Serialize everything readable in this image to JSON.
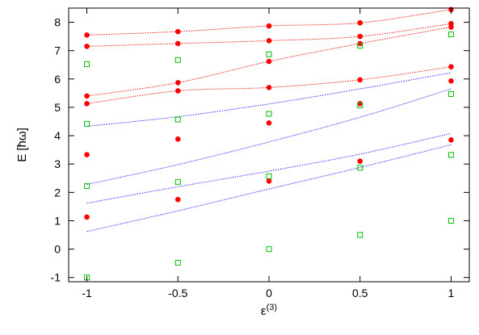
{
  "chart_data": {
    "type": "scatter",
    "title": "",
    "xlabel": "ε",
    "xlabel_superscript": "(3)",
    "ylabel": "E [ħω]",
    "xlim": [
      -1.1,
      1.1
    ],
    "ylim": [
      -1.15,
      8.5
    ],
    "xticks": [
      -1,
      -0.5,
      0,
      0.5,
      1
    ],
    "xtick_labels": [
      "-1",
      "-0.5",
      "0",
      "0.5",
      "1"
    ],
    "yticks": [
      -1,
      0,
      1,
      2,
      3,
      4,
      5,
      6,
      7,
      8
    ],
    "ytick_labels": [
      "-1",
      "0",
      "1",
      "2",
      "3",
      "4",
      "5",
      "6",
      "7",
      "8"
    ],
    "grid": false,
    "legend": "none",
    "colors": {
      "red_points": "#ff0000",
      "green_squares": "#00c000",
      "red_lines": "#e8201a",
      "blue_lines": "#3030ff"
    },
    "series": [
      {
        "marker": "filled-circle",
        "color": "red_points",
        "points": [
          [
            -1,
            7.55
          ],
          [
            -1,
            7.15
          ],
          [
            -1,
            5.4
          ],
          [
            -1,
            5.13
          ],
          [
            -1,
            3.33
          ],
          [
            -1,
            1.13
          ],
          [
            -0.5,
            7.67
          ],
          [
            -0.5,
            7.25
          ],
          [
            -0.5,
            5.87
          ],
          [
            -0.5,
            5.58
          ],
          [
            -0.5,
            3.88
          ],
          [
            -0.5,
            1.75
          ],
          [
            0,
            7.87
          ],
          [
            0,
            7.35
          ],
          [
            0,
            6.62
          ],
          [
            0,
            5.7
          ],
          [
            0,
            4.45
          ],
          [
            0,
            2.4
          ],
          [
            0.5,
            7.98
          ],
          [
            0.5,
            7.5
          ],
          [
            0.5,
            7.25
          ],
          [
            0.5,
            5.97
          ],
          [
            0.5,
            5.13
          ],
          [
            0.5,
            3.1
          ],
          [
            1,
            8.45
          ],
          [
            1,
            7.95
          ],
          [
            1,
            7.83
          ],
          [
            1,
            6.43
          ],
          [
            1,
            5.93
          ],
          [
            1,
            3.85
          ]
        ]
      },
      {
        "marker": "open-square",
        "color": "green_squares",
        "points": [
          [
            -1,
            6.52
          ],
          [
            -1,
            4.42
          ],
          [
            -1,
            2.22
          ],
          [
            -1,
            -1.0
          ],
          [
            -0.5,
            6.67
          ],
          [
            -0.5,
            4.57
          ],
          [
            -0.5,
            2.37
          ],
          [
            -0.5,
            -0.48
          ],
          [
            0,
            6.87
          ],
          [
            0,
            4.77
          ],
          [
            0,
            2.57
          ],
          [
            0,
            0.0
          ],
          [
            0.5,
            7.17
          ],
          [
            0.5,
            5.07
          ],
          [
            0.5,
            2.87
          ],
          [
            0.5,
            0.5
          ],
          [
            1,
            7.57
          ],
          [
            1,
            5.47
          ],
          [
            1,
            3.32
          ],
          [
            1,
            1.0
          ]
        ]
      }
    ],
    "curves": [
      {
        "style": "dotted",
        "color": "red_lines",
        "points": [
          [
            -1,
            7.55
          ],
          [
            -0.5,
            7.67
          ],
          [
            0,
            7.87
          ],
          [
            0.5,
            7.98
          ],
          [
            1,
            8.45
          ]
        ]
      },
      {
        "style": "dotted",
        "color": "red_lines",
        "points": [
          [
            -1,
            7.15
          ],
          [
            -0.5,
            7.25
          ],
          [
            0,
            7.35
          ],
          [
            0.5,
            7.5
          ],
          [
            1,
            7.95
          ]
        ]
      },
      {
        "style": "dotted",
        "color": "red_lines",
        "points": [
          [
            -1,
            5.4
          ],
          [
            -0.5,
            5.87
          ],
          [
            0,
            6.62
          ],
          [
            0.5,
            7.25
          ],
          [
            1,
            7.83
          ]
        ]
      },
      {
        "style": "dotted",
        "color": "red_lines",
        "points": [
          [
            -1,
            5.13
          ],
          [
            -0.5,
            5.58
          ],
          [
            0,
            5.7
          ],
          [
            0.5,
            5.97
          ],
          [
            1,
            6.43
          ]
        ]
      },
      {
        "style": "dotted",
        "color": "blue_lines",
        "points": [
          [
            -1,
            4.33
          ],
          [
            -0.5,
            4.67
          ],
          [
            0,
            5.12
          ],
          [
            0.5,
            5.65
          ],
          [
            1,
            6.22
          ]
        ]
      },
      {
        "style": "dotted",
        "color": "blue_lines",
        "points": [
          [
            -1,
            2.28
          ],
          [
            -0.5,
            2.98
          ],
          [
            0,
            3.78
          ],
          [
            0.5,
            4.65
          ],
          [
            1,
            5.65
          ]
        ]
      },
      {
        "style": "dotted",
        "color": "blue_lines",
        "points": [
          [
            -1,
            1.62
          ],
          [
            -0.5,
            2.2
          ],
          [
            0,
            2.75
          ],
          [
            0.5,
            3.35
          ],
          [
            1,
            4.08
          ]
        ]
      },
      {
        "style": "dotted",
        "color": "blue_lines",
        "points": [
          [
            -1,
            0.62
          ],
          [
            -0.5,
            1.35
          ],
          [
            0,
            2.12
          ],
          [
            0.5,
            2.88
          ],
          [
            1,
            3.68
          ]
        ]
      }
    ]
  }
}
